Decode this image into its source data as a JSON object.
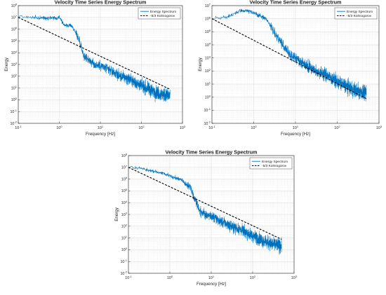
{
  "figure": {
    "panel_count": 3
  },
  "chart_data": [
    {
      "type": "line",
      "title": "Velocity Time Series Energy Spectrum",
      "xlabel": "Frequency [Hz]",
      "ylabel": "Energy",
      "xscale": "log",
      "yscale": "log",
      "xlim": [
        0.1,
        1000
      ],
      "ylim": [
        0.01,
        100000000
      ],
      "x_ticks": [
        "10^-1",
        "10^0",
        "10^1",
        "10^2",
        "10^3"
      ],
      "y_ticks": [
        "10^-2",
        "10^-1",
        "10^0",
        "10^1",
        "10^2",
        "10^3",
        "10^4",
        "10^5",
        "10^6",
        "10^7",
        "10^8"
      ],
      "grid": true,
      "legend_position": "top-right",
      "series": [
        {
          "name": "Energy Spectrum",
          "style": "solid",
          "color": "#0072BD",
          "x": [
            0.1,
            0.15,
            0.2,
            0.3,
            0.5,
            0.7,
            0.9,
            1.0,
            1.2,
            1.5,
            2,
            2.5,
            3,
            4,
            5,
            7,
            10,
            15,
            20,
            30,
            50,
            70,
            100,
            150,
            200,
            300,
            500
          ],
          "y": [
            12000000,
            11000000,
            10000000,
            9000000,
            9000000,
            10000000,
            8000000,
            12000000,
            3000000,
            2000000,
            2000000,
            500000,
            150000,
            5000,
            3000,
            1000,
            800,
            400,
            250,
            100,
            60,
            30,
            15,
            8,
            5,
            3,
            2
          ]
        },
        {
          "name": "-5/3 Kolmogorov",
          "style": "dashed",
          "color": "#000000",
          "x": [
            0.1,
            500
          ],
          "y": [
            10000000,
            7.7
          ]
        }
      ]
    },
    {
      "type": "line",
      "title": "Velocity Time Series Energy Spectrum",
      "xlabel": "Frequency [Hz]",
      "ylabel": "Energy",
      "xscale": "log",
      "yscale": "log",
      "xlim": [
        0.1,
        1000
      ],
      "ylim": [
        0.01,
        10000000
      ],
      "x_ticks": [
        "10^-1",
        "10^0",
        "10^1",
        "10^2",
        "10^3"
      ],
      "y_ticks": [
        "10^-2",
        "10^-1",
        "10^0",
        "10^1",
        "10^2",
        "10^3",
        "10^4",
        "10^5",
        "10^6",
        "10^7"
      ],
      "grid": true,
      "legend_position": "top-right",
      "series": [
        {
          "name": "Energy Spectrum",
          "style": "solid",
          "color": "#0072BD",
          "x": [
            0.1,
            0.15,
            0.2,
            0.3,
            0.4,
            0.5,
            0.7,
            1.0,
            1.2,
            1.5,
            2,
            2.5,
            3,
            4,
            5,
            7,
            10,
            15,
            20,
            30,
            50,
            70,
            100,
            150,
            200,
            300,
            500
          ],
          "y": [
            1000000,
            1100000,
            1200000,
            1800000,
            3000000,
            4000000,
            4000000,
            3000000,
            2000000,
            1500000,
            1000000,
            300000,
            100000,
            30000,
            10000,
            2000,
            1000,
            400,
            250,
            100,
            60,
            30,
            15,
            8,
            5,
            3,
            2
          ]
        },
        {
          "name": "-5/3 Kolmogorov",
          "style": "dashed",
          "color": "#000000",
          "x": [
            0.1,
            500
          ],
          "y": [
            1000000,
            0.77
          ]
        }
      ]
    },
    {
      "type": "line",
      "title": "Velocity Time Series Energy Spectrum",
      "xlabel": "Frequency [Hz]",
      "ylabel": "Energy",
      "xscale": "log",
      "yscale": "log",
      "xlim": [
        0.1,
        1000
      ],
      "ylim": [
        0.01,
        100000000
      ],
      "x_ticks": [
        "10^-1",
        "10^0",
        "10^1",
        "10^2",
        "10^3"
      ],
      "y_ticks": [
        "10^-2",
        "10^-1",
        "10^0",
        "10^1",
        "10^2",
        "10^3",
        "10^4",
        "10^5",
        "10^6",
        "10^7",
        "10^8"
      ],
      "grid": true,
      "legend_position": "top-right",
      "series": [
        {
          "name": "Energy Spectrum",
          "style": "solid",
          "color": "#0072BD",
          "x": [
            0.1,
            0.15,
            0.2,
            0.3,
            0.5,
            0.7,
            1.0,
            1.2,
            1.5,
            2,
            2.5,
            3,
            3.5,
            4,
            5,
            7,
            10,
            15,
            20,
            30,
            50,
            70,
            100,
            150,
            200,
            300,
            500
          ],
          "y": [
            12000000,
            10000000,
            8000000,
            6000000,
            4000000,
            3000000,
            2000000,
            1500000,
            1200000,
            800000,
            300000,
            300000,
            60000,
            20000,
            3000,
            1000,
            700,
            300,
            200,
            100,
            50,
            30,
            15,
            8,
            5,
            3,
            2
          ]
        },
        {
          "name": "-5/3 Kolmogorov",
          "style": "dashed",
          "color": "#000000",
          "x": [
            0.1,
            500
          ],
          "y": [
            10000000,
            7.7
          ]
        }
      ]
    }
  ]
}
